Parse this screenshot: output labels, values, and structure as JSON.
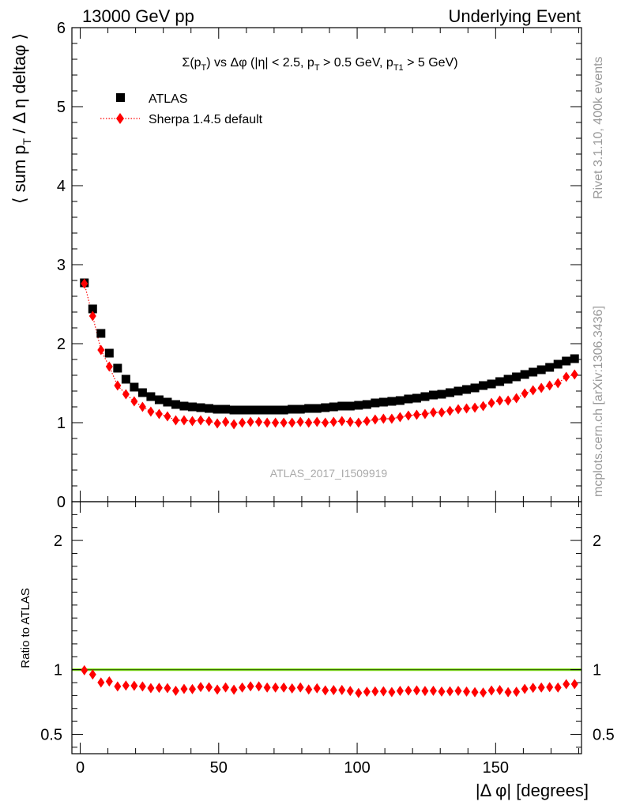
{
  "header": {
    "left": "13000 GeV pp",
    "right": "Underlying Event"
  },
  "side_labels": {
    "rivet": "Rivet 3.1.10,  400k events",
    "mcplots": "mcplots.cern.ch [arXiv:1306.3436]"
  },
  "watermark": "ATLAS_2017_I1509919",
  "chart_data": [
    {
      "type": "scatter",
      "panel": "main",
      "title_parts": [
        "Σ(p",
        "T",
        ") vs Δφ (|η| < 2.5, p",
        "T",
        " > 0.5 GeV, p",
        "T1",
        " > 5 GeV)"
      ],
      "ylabel_parts": [
        "⟨ sum p",
        "T",
        " / Δ η deltaφ ⟩"
      ],
      "xlabel": "|Δ φ| [degrees]",
      "xlim": [
        -3,
        181
      ],
      "ylim": [
        0,
        6
      ],
      "xticks": [
        0,
        50,
        100,
        150
      ],
      "yticks": [
        0,
        1,
        2,
        3,
        4,
        5,
        6
      ],
      "ytick_labels": [
        "0",
        "1",
        "2",
        "3",
        "4",
        "5",
        "6"
      ],
      "legend_position": "top-left",
      "x": [
        1.5,
        4.5,
        7.5,
        10.5,
        13.5,
        16.5,
        19.5,
        22.5,
        25.5,
        28.5,
        31.5,
        34.5,
        37.5,
        40.5,
        43.5,
        46.5,
        49.5,
        52.5,
        55.5,
        58.5,
        61.5,
        64.5,
        67.5,
        70.5,
        73.5,
        76.5,
        79.5,
        82.5,
        85.5,
        88.5,
        91.5,
        94.5,
        97.5,
        100.5,
        103.5,
        106.5,
        109.5,
        112.5,
        115.5,
        118.5,
        121.5,
        124.5,
        127.5,
        130.5,
        133.5,
        136.5,
        139.5,
        142.5,
        145.5,
        148.5,
        151.5,
        154.5,
        157.5,
        160.5,
        163.5,
        166.5,
        169.5,
        172.5,
        175.5,
        178.5
      ],
      "series": [
        {
          "name": "ATLAS",
          "marker": "square",
          "color": "#000000",
          "values": [
            2.77,
            2.44,
            2.13,
            1.88,
            1.69,
            1.55,
            1.45,
            1.38,
            1.33,
            1.29,
            1.26,
            1.23,
            1.21,
            1.2,
            1.19,
            1.18,
            1.17,
            1.17,
            1.16,
            1.16,
            1.16,
            1.16,
            1.16,
            1.16,
            1.16,
            1.17,
            1.17,
            1.18,
            1.18,
            1.19,
            1.2,
            1.21,
            1.21,
            1.22,
            1.23,
            1.25,
            1.26,
            1.27,
            1.28,
            1.3,
            1.31,
            1.33,
            1.35,
            1.36,
            1.38,
            1.4,
            1.42,
            1.44,
            1.47,
            1.49,
            1.52,
            1.55,
            1.58,
            1.61,
            1.64,
            1.67,
            1.7,
            1.74,
            1.78,
            1.81
          ]
        },
        {
          "name": "Sherpa 1.4.5 default",
          "marker": "diamond",
          "line": "dotted",
          "color": "#ff0000",
          "values": [
            2.76,
            2.35,
            1.92,
            1.71,
            1.47,
            1.36,
            1.27,
            1.2,
            1.14,
            1.11,
            1.08,
            1.03,
            1.03,
            1.02,
            1.03,
            1.02,
            0.99,
            1.01,
            0.98,
            1.0,
            1.01,
            1.01,
            1.0,
            1.0,
            1.0,
            1.0,
            1.01,
            1.0,
            1.01,
            1.0,
            1.01,
            1.02,
            1.01,
            1.0,
            1.02,
            1.04,
            1.05,
            1.05,
            1.07,
            1.09,
            1.1,
            1.11,
            1.13,
            1.13,
            1.15,
            1.17,
            1.18,
            1.19,
            1.21,
            1.25,
            1.28,
            1.28,
            1.31,
            1.37,
            1.41,
            1.44,
            1.47,
            1.5,
            1.58,
            1.61
          ]
        }
      ]
    },
    {
      "type": "scatter",
      "panel": "ratio",
      "ylabel": "Ratio to ATLAS",
      "ylim": [
        0.35,
        2.3
      ],
      "yticks": [
        0.5,
        1,
        2
      ],
      "ytick_labels": [
        "0.5",
        "1",
        "2"
      ],
      "band": {
        "color": "#99ff33",
        "lo": 0.99,
        "hi": 1.01
      },
      "reference_line": {
        "value": 1.0,
        "color": "#3d6b00"
      },
      "series": [
        {
          "name": "Sherpa 1.4.5 default",
          "marker": "diamond",
          "color": "#ff0000",
          "values": [
            0.996,
            0.963,
            0.901,
            0.909,
            0.87,
            0.877,
            0.876,
            0.87,
            0.857,
            0.86,
            0.857,
            0.837,
            0.851,
            0.85,
            0.866,
            0.864,
            0.846,
            0.863,
            0.845,
            0.862,
            0.871,
            0.871,
            0.862,
            0.862,
            0.862,
            0.855,
            0.863,
            0.847,
            0.856,
            0.84,
            0.842,
            0.843,
            0.835,
            0.82,
            0.829,
            0.832,
            0.833,
            0.827,
            0.836,
            0.838,
            0.84,
            0.835,
            0.837,
            0.831,
            0.833,
            0.836,
            0.831,
            0.826,
            0.823,
            0.839,
            0.842,
            0.826,
            0.829,
            0.851,
            0.86,
            0.862,
            0.865,
            0.862,
            0.888,
            0.889
          ]
        }
      ]
    }
  ]
}
